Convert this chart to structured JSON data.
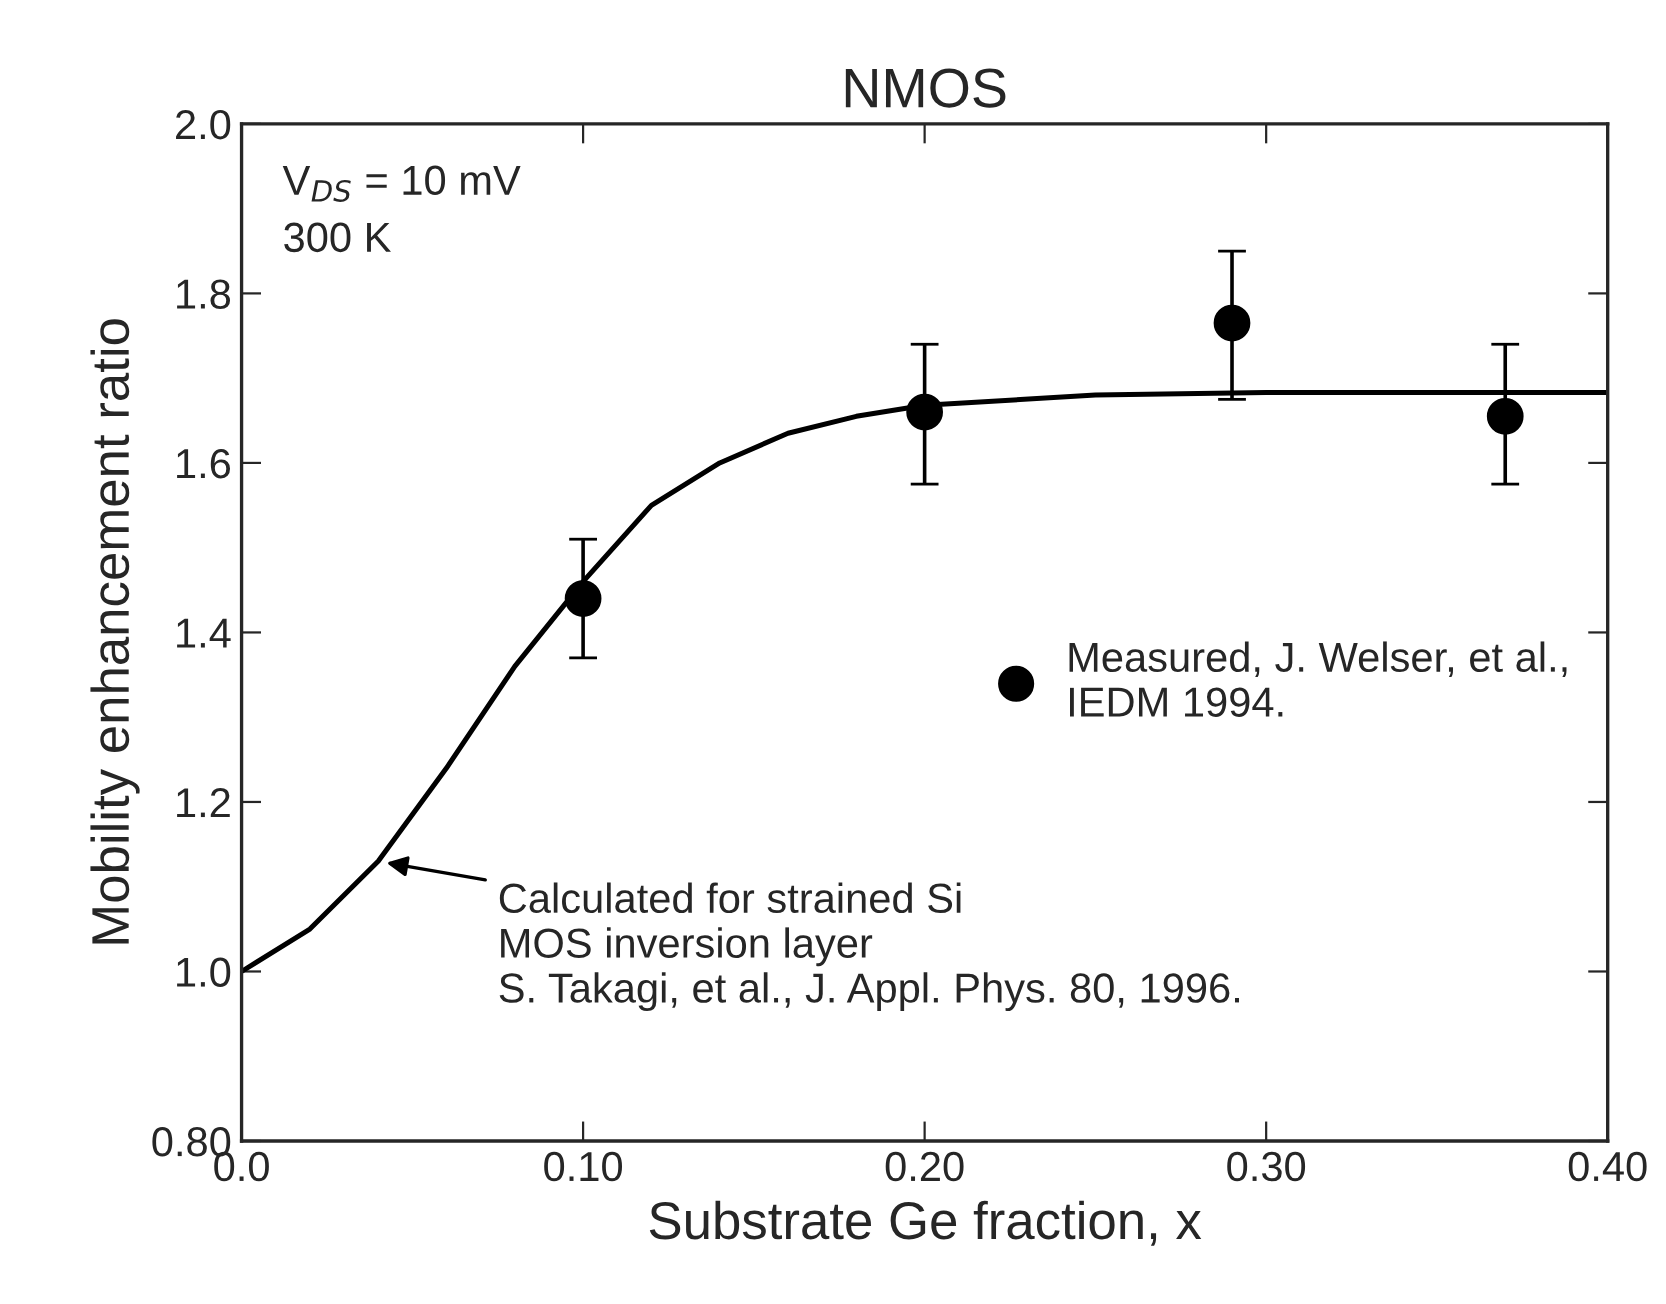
{
  "chart_data": {
    "type": "scatter",
    "title": "NMOS",
    "xlabel": "Substrate Ge fraction, x",
    "ylabel": "Mobility enhancement ratio",
    "xlim": [
      0.0,
      0.4
    ],
    "ylim": [
      0.8,
      2.0
    ],
    "xticks": [
      {
        "value": 0.0,
        "label": "0.0"
      },
      {
        "value": 0.1,
        "label": "0.10"
      },
      {
        "value": 0.2,
        "label": "0.20"
      },
      {
        "value": 0.3,
        "label": "0.30"
      },
      {
        "value": 0.4,
        "label": "0.40"
      }
    ],
    "yticks": [
      {
        "value": 0.8,
        "label": "0.80"
      },
      {
        "value": 1.0,
        "label": "1.0"
      },
      {
        "value": 1.2,
        "label": "1.2"
      },
      {
        "value": 1.4,
        "label": "1.4"
      },
      {
        "value": 1.6,
        "label": "1.6"
      },
      {
        "value": 1.8,
        "label": "1.8"
      },
      {
        "value": 2.0,
        "label": "2.0"
      }
    ],
    "legend": "center right",
    "grid": false,
    "series": [
      {
        "type": "line",
        "color": "#000000",
        "line_style": "solid",
        "marker": "none",
        "x": [
          0.0,
          0.02,
          0.04,
          0.06,
          0.08,
          0.1,
          0.12,
          0.14,
          0.16,
          0.18,
          0.2,
          0.25,
          0.3,
          0.4
        ],
        "values": [
          1.0,
          1.05,
          1.13,
          1.24,
          1.36,
          1.46,
          1.55,
          1.6,
          1.635,
          1.655,
          1.668,
          1.68,
          1.683,
          1.683
        ]
      },
      {
        "name": "Measured, J. Welser, et al.,\nIEDM 1994.",
        "color": "#000000",
        "marker": "circle",
        "x": [
          0.1,
          0.2,
          0.29,
          0.37
        ],
        "values": [
          1.44,
          1.66,
          1.765,
          1.655
        ],
        "errors": [
          [
            1.37,
            1.51
          ],
          [
            1.575,
            1.74
          ],
          [
            1.675,
            1.85
          ],
          [
            1.575,
            1.74
          ]
        ]
      }
    ],
    "annotations": [
      "V$_{DS}$ = 10 mV\n300 K",
      {
        "text": "Calculated for strained Si\nMOS inversion layer\nS. Takagi, et al., J. Appl. Phys. 80, 1996.",
        "x": 0.04,
        "y": 1.13
      }
    ]
  }
}
